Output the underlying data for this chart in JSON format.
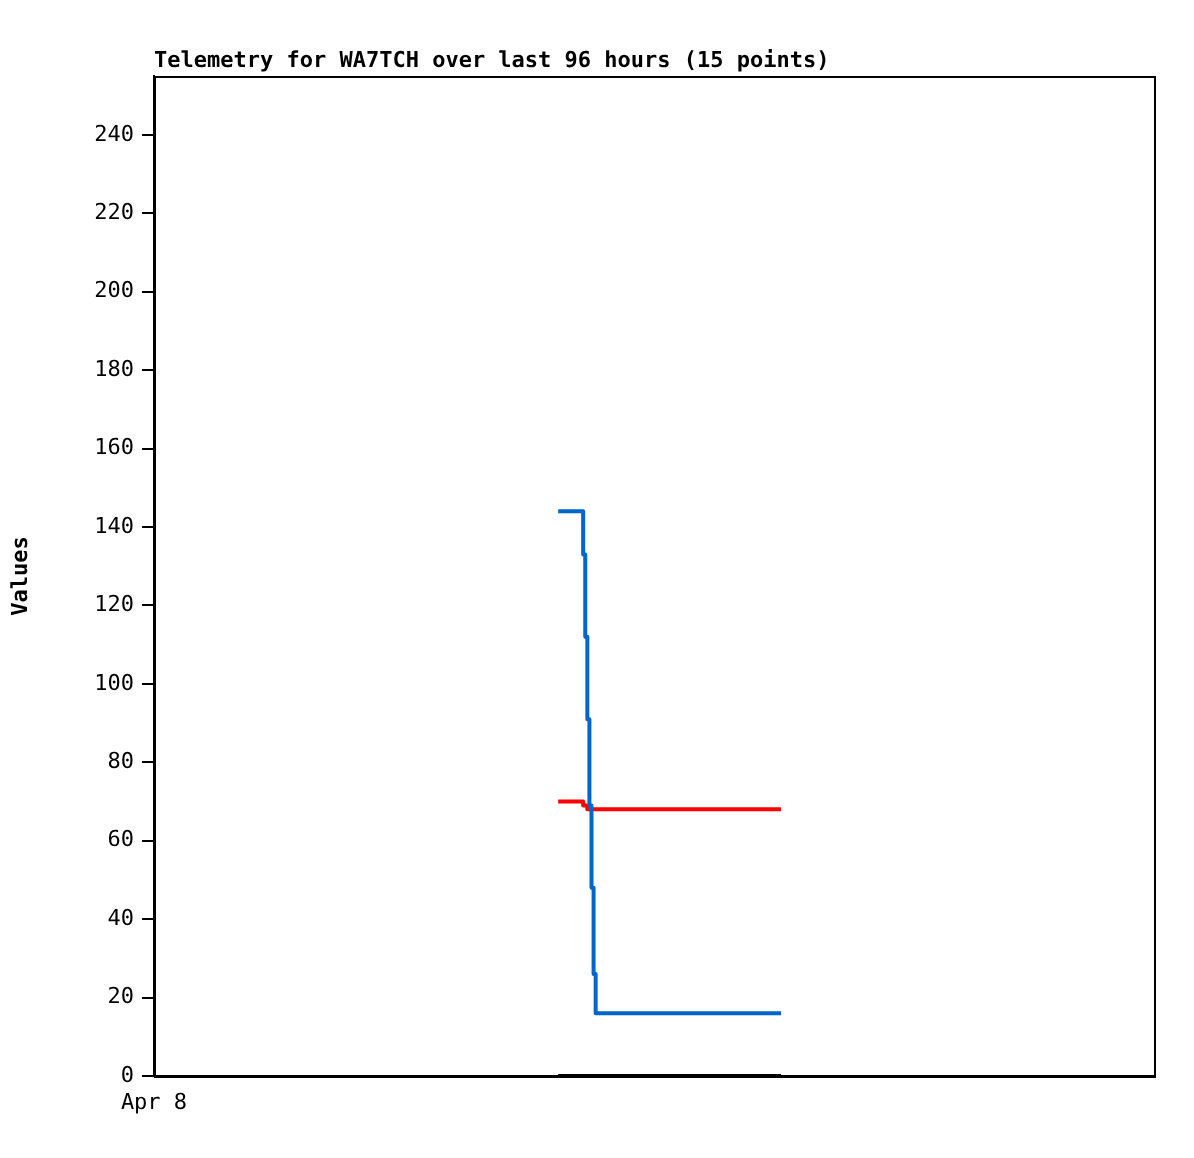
{
  "chart_data": {
    "type": "step",
    "title": "Telemetry for WA7TCH over last 96 hours (15 points)",
    "ylabel": "Values",
    "annotations": [
      "Apr 8"
    ],
    "categories": [
      null,
      null,
      null,
      null,
      null,
      null,
      null,
      null,
      null,
      null,
      null,
      null,
      null,
      null,
      null,
      null,
      null,
      null,
      null,
      null,
      null,
      null,
      null,
      null,
      null,
      null,
      null,
      null,
      null,
      null,
      null,
      null,
      null,
      null,
      null,
      null,
      null,
      null,
      null,
      null,
      null,
      null,
      null,
      null,
      null,
      null,
      null,
      null,
      null,
      null,
      null,
      null,
      null,
      null,
      null,
      null,
      null,
      null,
      null,
      null,
      null,
      null,
      null,
      null,
      null,
      null,
      null,
      null,
      null,
      null,
      null,
      null,
      null,
      null,
      null,
      null,
      null,
      null,
      null,
      null,
      null,
      null,
      null,
      null,
      null,
      null,
      null,
      null,
      null,
      null,
      null,
      null,
      null,
      null,
      null,
      null,
      null,
      null,
      null,
      null,
      null,
      null,
      null,
      null,
      null,
      null,
      null,
      null,
      null,
      null,
      null,
      null,
      null,
      null,
      null,
      null,
      null,
      null,
      null,
      null,
      null,
      null,
      null,
      null,
      null,
      null,
      null,
      null,
      null,
      null,
      null,
      null,
      null,
      null,
      null,
      null,
      null,
      null,
      null,
      null,
      null,
      null,
      null,
      null,
      null,
      null,
      null,
      null,
      null,
      null,
      null,
      null,
      null,
      null,
      null,
      null,
      null,
      null,
      null,
      null,
      null,
      null,
      null,
      null,
      null,
      null,
      null,
      null,
      null,
      null,
      null,
      null,
      null,
      null,
      null,
      null,
      null,
      null,
      null,
      null,
      null,
      null,
      null,
      null,
      null,
      null,
      null,
      null,
      null,
      null,
      null,
      null,
      null,
      null,
      null,
      null,
      null,
      null,
      null,
      null,
      null,
      null,
      null,
      null,
      null,
      null,
      null,
      null,
      null,
      null,
      null,
      null,
      null,
      null,
      null,
      null,
      null,
      null,
      null,
      null,
      null,
      null,
      null,
      null,
      null,
      null,
      null,
      null,
      null,
      null,
      null,
      null,
      null,
      null,
      null,
      null,
      null,
      null,
      null,
      null,
      null,
      null,
      null,
      null,
      null,
      null,
      null,
      null,
      null,
      null,
      null,
      null,
      null,
      null,
      null,
      null,
      null,
      null,
      null,
      null,
      null,
      null,
      null,
      null,
      null,
      null,
      null,
      null,
      null,
      null,
      null,
      null,
      null,
      null,
      null,
      null,
      null,
      null,
      null,
      null,
      null,
      null,
      null,
      null,
      null,
      null,
      null,
      null,
      null,
      null,
      null,
      null,
      null,
      null,
      null,
      null,
      null,
      null,
      null,
      null,
      null,
      null,
      null,
      null,
      null,
      null,
      null,
      null,
      null,
      null,
      null,
      null,
      null,
      null,
      null,
      null,
      null,
      null,
      null,
      null,
      null,
      null,
      null,
      null,
      null,
      null,
      null,
      null,
      null,
      null,
      null,
      null,
      null,
      null,
      null,
      null,
      null,
      null,
      null,
      null,
      null,
      null,
      null,
      null,
      null,
      null,
      null,
      null,
      null,
      null,
      null,
      null,
      null,
      null,
      null,
      null,
      null,
      null,
      null,
      null,
      null,
      null,
      null,
      null,
      null,
      null,
      null,
      null,
      null,
      null,
      null,
      null,
      null,
      null,
      null,
      null,
      null,
      null,
      null,
      null,
      null,
      null,
      null,
      null,
      null,
      null,
      null,
      null,
      null,
      null,
      null,
      null,
      null,
      null,
      null,
      null,
      null,
      null,
      null,
      null,
      null,
      null,
      null,
      null,
      null,
      null,
      null,
      null,
      null,
      null,
      null,
      null,
      null,
      null,
      null,
      null,
      null,
      null,
      null,
      null,
      null,
      null,
      null,
      null,
      null,
      null,
      null,
      null,
      null,
      null,
      null,
      null,
      null,
      null,
      null,
      null,
      null,
      null,
      null,
      null,
      null,
      null,
      null,
      null,
      null,
      null,
      null,
      null,
      null,
      null,
      null,
      null,
      null,
      null,
      null,
      null,
      null,
      null,
      null,
      null,
      null,
      null,
      null,
      null,
      null,
      null,
      null,
      null,
      null,
      null,
      null,
      null,
      null,
      null,
      null,
      null,
      null,
      null,
      null,
      null,
      null
    ],
    "ylim": [
      0,
      255
    ],
    "yticks": [
      0,
      20,
      40,
      60,
      80,
      100,
      120,
      140,
      160,
      180,
      200,
      220,
      240
    ],
    "grid": false,
    "legend": false,
    "series": [
      {
        "color": "#0066cc",
        "values": [
          null,
          null,
          null,
          null,
          null,
          null,
          null,
          null,
          null,
          null,
          null,
          null,
          null,
          null,
          null,
          null,
          null,
          null,
          null,
          null,
          null,
          null,
          null,
          null,
          null,
          null,
          null,
          null,
          null,
          null,
          null,
          null,
          null,
          null,
          null,
          null,
          null,
          null,
          null,
          null,
          null,
          null,
          null,
          null,
          null,
          null,
          null,
          null,
          null,
          null,
          null,
          null,
          null,
          null,
          null,
          null,
          null,
          null,
          null,
          null,
          null,
          null,
          null,
          null,
          null,
          null,
          null,
          null,
          null,
          null,
          null,
          null,
          null,
          null,
          null,
          null,
          null,
          null,
          null,
          null,
          null,
          null,
          null,
          null,
          null,
          null,
          null,
          null,
          null,
          null,
          null,
          null,
          null,
          null,
          null,
          null,
          null,
          null,
          null,
          null,
          null,
          null,
          null,
          null,
          null,
          null,
          null,
          null,
          null,
          null,
          null,
          null,
          null,
          null,
          null,
          null,
          null,
          null,
          null,
          null,
          null,
          null,
          null,
          null,
          null,
          null,
          null,
          null,
          null,
          null,
          null,
          null,
          null,
          null,
          null,
          null,
          null,
          null,
          null,
          null,
          null,
          null,
          null,
          null,
          null,
          null,
          null,
          null,
          null,
          null,
          null,
          null,
          null,
          null,
          null,
          null,
          null,
          null,
          null,
          null,
          null,
          null,
          null,
          null,
          null,
          null,
          null,
          null,
          null,
          null,
          null,
          null,
          null,
          null,
          null,
          null,
          null,
          null,
          null,
          null,
          null,
          null,
          null,
          null,
          null,
          null,
          null,
          null,
          null,
          null,
          null,
          null,
          null,
          null,
          144,
          144,
          144,
          144,
          144,
          144,
          144,
          144,
          144,
          144,
          144,
          144,
          133,
          112,
          91,
          69,
          48,
          26,
          16,
          16,
          16,
          16,
          16,
          16,
          16,
          16,
          16,
          16,
          16,
          16,
          16,
          16,
          16,
          16,
          16,
          16,
          16,
          16,
          16,
          16,
          16,
          16,
          16,
          16,
          16,
          16,
          16,
          16,
          16,
          16,
          16,
          16,
          16,
          16,
          16,
          16,
          16,
          16,
          16,
          16,
          16,
          16,
          16,
          16,
          16,
          16,
          16,
          16,
          16,
          16,
          16,
          16,
          16,
          16,
          16,
          16,
          16,
          16,
          16,
          16,
          16,
          16,
          16,
          16,
          16,
          16,
          16,
          16,
          16,
          16,
          16,
          16,
          16,
          16,
          16,
          16,
          16,
          16,
          16,
          16,
          16,
          16,
          16,
          16,
          16,
          16,
          16,
          16,
          null,
          null,
          null,
          null,
          null,
          null,
          null,
          null,
          null,
          null,
          null,
          null,
          null,
          null,
          null,
          null,
          null,
          null,
          null,
          null,
          null,
          null,
          null,
          null,
          null,
          null,
          null,
          null,
          null,
          null,
          null,
          null,
          null,
          null,
          null,
          null,
          null,
          null,
          null,
          null,
          null,
          null,
          null,
          null,
          null,
          null,
          null,
          null,
          null,
          null,
          null,
          null,
          null,
          null,
          null,
          null,
          null,
          null,
          null,
          null,
          null,
          null,
          null,
          null,
          null,
          null,
          null,
          null,
          null,
          null,
          null,
          null,
          null,
          null,
          null,
          null,
          null,
          null,
          null,
          null,
          null,
          null,
          null,
          null,
          null,
          null,
          null,
          null,
          null,
          null,
          null,
          null,
          null,
          null,
          null,
          null,
          null,
          null,
          null,
          null,
          null,
          null,
          null,
          null,
          null,
          null,
          null,
          null,
          null,
          null,
          null,
          null,
          null,
          null,
          null,
          null,
          null,
          null,
          null,
          null,
          null,
          null,
          null,
          null,
          null,
          null,
          null,
          null,
          null,
          null,
          null,
          null,
          null,
          null,
          null,
          null,
          null,
          null,
          null,
          null,
          null,
          null,
          null,
          null,
          null,
          null,
          null,
          null,
          null,
          null,
          null,
          null,
          null,
          null,
          null,
          null,
          null,
          null,
          null,
          null,
          null,
          null,
          null,
          null,
          null,
          null,
          null,
          null,
          null,
          null,
          null,
          null,
          null,
          null,
          null,
          null,
          null,
          null,
          null
        ]
      },
      {
        "color": "#ff0000",
        "values": [
          null,
          null,
          null,
          null,
          null,
          null,
          null,
          null,
          null,
          null,
          null,
          null,
          null,
          null,
          null,
          null,
          null,
          null,
          null,
          null,
          null,
          null,
          null,
          null,
          null,
          null,
          null,
          null,
          null,
          null,
          null,
          null,
          null,
          null,
          null,
          null,
          null,
          null,
          null,
          null,
          null,
          null,
          null,
          null,
          null,
          null,
          null,
          null,
          null,
          null,
          null,
          null,
          null,
          null,
          null,
          null,
          null,
          null,
          null,
          null,
          null,
          null,
          null,
          null,
          null,
          null,
          null,
          null,
          null,
          null,
          null,
          null,
          null,
          null,
          null,
          null,
          null,
          null,
          null,
          null,
          null,
          null,
          null,
          null,
          null,
          null,
          null,
          null,
          null,
          null,
          null,
          null,
          null,
          null,
          null,
          null,
          null,
          null,
          null,
          null,
          null,
          null,
          null,
          null,
          null,
          null,
          null,
          null,
          null,
          null,
          null,
          null,
          null,
          null,
          null,
          null,
          null,
          null,
          null,
          null,
          null,
          null,
          null,
          null,
          null,
          null,
          null,
          null,
          null,
          null,
          null,
          null,
          null,
          null,
          null,
          null,
          null,
          null,
          null,
          null,
          null,
          null,
          null,
          null,
          null,
          null,
          null,
          null,
          null,
          null,
          null,
          null,
          null,
          null,
          null,
          null,
          null,
          null,
          null,
          null,
          null,
          null,
          null,
          null,
          null,
          null,
          null,
          null,
          null,
          null,
          null,
          null,
          null,
          null,
          null,
          null,
          null,
          null,
          null,
          null,
          null,
          null,
          null,
          null,
          null,
          null,
          null,
          null,
          null,
          null,
          null,
          null,
          null,
          null,
          70,
          70,
          70,
          70,
          70,
          70,
          70,
          70,
          70,
          70,
          70,
          70,
          69,
          69,
          68,
          68,
          68,
          68,
          68,
          68,
          68,
          68,
          68,
          68,
          68,
          68,
          68,
          68,
          68,
          68,
          68,
          68,
          68,
          68,
          68,
          68,
          68,
          68,
          68,
          68,
          68,
          68,
          68,
          68,
          68,
          68,
          68,
          68,
          68,
          68,
          68,
          68,
          68,
          68,
          68,
          68,
          68,
          68,
          68,
          68,
          68,
          68,
          68,
          68,
          68,
          68,
          68,
          68,
          68,
          68,
          68,
          68,
          68,
          68,
          68,
          68,
          68,
          68,
          68,
          68,
          68,
          68,
          68,
          68,
          68,
          68,
          68,
          68,
          68,
          68,
          68,
          68,
          68,
          68,
          68,
          68,
          68,
          68,
          68,
          68,
          68,
          68,
          68,
          68,
          68,
          68,
          68,
          68,
          null,
          null,
          null,
          null,
          null,
          null,
          null,
          null,
          null,
          null,
          null,
          null,
          null,
          null,
          null,
          null,
          null,
          null,
          null,
          null,
          null,
          null,
          null,
          null,
          null,
          null,
          null,
          null,
          null,
          null,
          null,
          null,
          null,
          null,
          null,
          null,
          null,
          null,
          null,
          null,
          null,
          null,
          null,
          null,
          null,
          null,
          null,
          null,
          null,
          null,
          null,
          null,
          null,
          null,
          null,
          null,
          null,
          null,
          null,
          null,
          null,
          null,
          null,
          null,
          null,
          null,
          null,
          null,
          null,
          null,
          null,
          null,
          null,
          null,
          null,
          null,
          null,
          null,
          null,
          null,
          null,
          null,
          null,
          null,
          null,
          null,
          null,
          null,
          null,
          null,
          null,
          null,
          null,
          null,
          null,
          null,
          null,
          null,
          null,
          null,
          null,
          null,
          null,
          null,
          null,
          null,
          null,
          null,
          null,
          null,
          null,
          null,
          null,
          null,
          null,
          null,
          null,
          null,
          null,
          null,
          null,
          null,
          null,
          null,
          null,
          null,
          null,
          null,
          null,
          null,
          null,
          null,
          null,
          null,
          null,
          null,
          null,
          null,
          null,
          null,
          null,
          null,
          null,
          null,
          null,
          null,
          null,
          null,
          null,
          null,
          null,
          null,
          null,
          null,
          null,
          null,
          null,
          null,
          null,
          null,
          null,
          null,
          null,
          null,
          null,
          null,
          null,
          null,
          null,
          null,
          null,
          null,
          null,
          null,
          null,
          null,
          null,
          null,
          null
        ]
      },
      {
        "color": "#000000",
        "values": [
          null,
          null,
          null,
          null,
          null,
          null,
          null,
          null,
          null,
          null,
          null,
          null,
          null,
          null,
          null,
          null,
          null,
          null,
          null,
          null,
          null,
          null,
          null,
          null,
          null,
          null,
          null,
          null,
          null,
          null,
          null,
          null,
          null,
          null,
          null,
          null,
          null,
          null,
          null,
          null,
          null,
          null,
          null,
          null,
          null,
          null,
          null,
          null,
          null,
          null,
          null,
          null,
          null,
          null,
          null,
          null,
          null,
          null,
          null,
          null,
          null,
          null,
          null,
          null,
          null,
          null,
          null,
          null,
          null,
          null,
          null,
          null,
          null,
          null,
          null,
          null,
          null,
          null,
          null,
          null,
          null,
          null,
          null,
          null,
          null,
          null,
          null,
          null,
          null,
          null,
          null,
          null,
          null,
          null,
          null,
          null,
          null,
          null,
          null,
          null,
          null,
          null,
          null,
          null,
          null,
          null,
          null,
          null,
          null,
          null,
          null,
          null,
          null,
          null,
          null,
          null,
          null,
          null,
          null,
          null,
          null,
          null,
          null,
          null,
          null,
          null,
          null,
          null,
          null,
          null,
          null,
          null,
          null,
          null,
          null,
          null,
          null,
          null,
          null,
          null,
          null,
          null,
          null,
          null,
          null,
          null,
          null,
          null,
          null,
          null,
          null,
          null,
          null,
          null,
          null,
          null,
          null,
          null,
          null,
          null,
          null,
          null,
          null,
          null,
          null,
          null,
          null,
          null,
          null,
          null,
          null,
          null,
          null,
          null,
          null,
          null,
          null,
          null,
          null,
          null,
          null,
          null,
          null,
          null,
          null,
          null,
          null,
          null,
          null,
          null,
          null,
          null,
          null,
          null,
          0,
          0,
          0,
          0,
          0,
          0,
          0,
          0,
          0,
          0,
          0,
          0,
          0,
          0,
          0,
          0,
          0,
          0,
          0,
          0,
          0,
          0,
          0,
          0,
          0,
          0,
          0,
          0,
          0,
          0,
          0,
          0,
          0,
          0,
          0,
          0,
          0,
          0,
          0,
          0,
          0,
          0,
          0,
          0,
          0,
          0,
          0,
          0,
          0,
          0,
          0,
          0,
          0,
          0,
          0,
          0,
          0,
          0,
          0,
          0,
          0,
          0,
          0,
          0,
          0,
          0,
          0,
          0,
          0,
          0,
          0,
          0,
          0,
          0,
          0,
          0,
          0,
          0,
          0,
          0,
          0,
          0,
          0,
          0,
          0,
          0,
          0,
          0,
          0,
          0,
          0,
          0,
          0,
          0,
          0,
          0,
          0,
          0,
          0,
          0,
          0,
          0,
          0,
          0,
          0,
          0,
          0,
          0,
          null,
          null,
          null,
          null,
          null,
          null,
          null,
          null,
          null,
          null,
          null,
          null,
          null,
          null,
          null,
          null,
          null,
          null,
          null,
          null,
          null,
          null,
          null,
          null,
          null,
          null,
          null,
          null,
          null,
          null,
          null,
          null,
          null,
          null,
          null,
          null,
          null,
          null,
          null,
          null,
          null,
          null,
          null,
          null,
          null,
          null,
          null,
          null,
          null,
          null,
          null,
          null,
          null,
          null,
          null,
          null,
          null,
          null,
          null,
          null,
          null,
          null,
          null,
          null,
          null,
          null,
          null,
          null,
          null,
          null,
          null,
          null,
          null,
          null,
          null,
          null,
          null,
          null,
          null,
          null,
          null,
          null,
          null,
          null,
          null,
          null,
          null,
          null,
          null,
          null,
          null,
          null,
          null,
          null,
          null,
          null,
          null,
          null,
          null,
          null,
          null,
          null,
          null,
          null,
          null,
          null,
          null,
          null,
          null,
          null,
          null,
          null,
          null,
          null,
          null,
          null,
          null,
          null,
          null,
          null,
          null,
          null,
          null,
          null,
          null,
          null,
          null,
          null,
          null,
          null,
          null,
          null,
          null,
          null,
          null,
          null,
          null,
          null,
          null,
          null,
          null,
          null,
          null,
          null,
          null,
          null,
          null,
          null,
          null,
          null,
          null,
          null,
          null,
          null,
          null,
          null,
          null,
          null,
          null,
          null,
          null,
          null,
          null,
          null,
          null,
          null,
          null,
          null,
          null,
          null,
          null,
          null,
          null,
          null,
          null,
          null,
          null,
          null,
          null
        ]
      }
    ]
  }
}
